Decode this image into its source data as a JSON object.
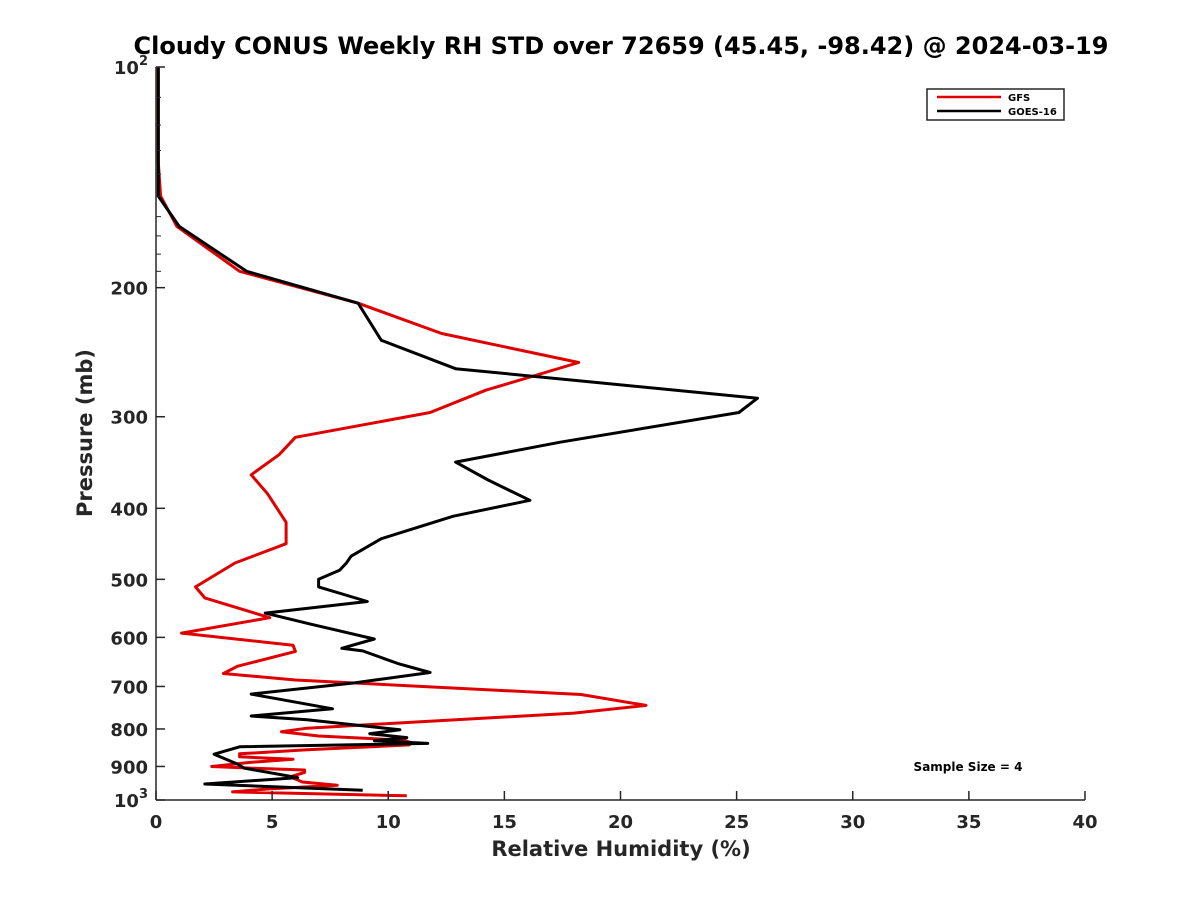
{
  "chart_data": {
    "type": "line",
    "title": "Cloudy CONUS Weekly RH STD over 72659 (45.45, -98.42) @ 2024-03-19",
    "xlabel": "Relative Humidity (%)",
    "ylabel": "Pressure (mb)",
    "xlim": [
      0,
      40
    ],
    "ylim": [
      100,
      1000
    ],
    "y_scale": "log",
    "y_reversed": true,
    "grid": false,
    "legend_position": "top-right",
    "x_ticks": [
      "0",
      "5",
      "10",
      "15",
      "20",
      "25",
      "30",
      "35",
      "40"
    ],
    "y_ticks": [
      {
        "value": 100,
        "base": "10",
        "exp": "2"
      },
      {
        "value": 200,
        "label": "200"
      },
      {
        "value": 300,
        "label": "300"
      },
      {
        "value": 400,
        "label": "400"
      },
      {
        "value": 500,
        "label": "500"
      },
      {
        "value": 600,
        "label": "600"
      },
      {
        "value": 700,
        "label": "700"
      },
      {
        "value": 800,
        "label": "800"
      },
      {
        "value": 900,
        "label": "900"
      },
      {
        "value": 1000,
        "base": "10",
        "exp": "3"
      }
    ],
    "annotation": "Sample Size = 4",
    "series": [
      {
        "name": "GFS",
        "color": "#e00000",
        "points": [
          [
            0.1,
            100
          ],
          [
            0.1,
            115
          ],
          [
            0.1,
            135
          ],
          [
            0.2,
            150
          ],
          [
            0.9,
            165
          ],
          [
            3.6,
            190
          ],
          [
            8.7,
            210
          ],
          [
            12.3,
            231
          ],
          [
            18.2,
            253
          ],
          [
            14.2,
            276
          ],
          [
            11.8,
            296
          ],
          [
            6.0,
            320
          ],
          [
            5.3,
            338
          ],
          [
            4.1,
            360
          ],
          [
            4.8,
            382
          ],
          [
            5.6,
            418
          ],
          [
            5.6,
            447
          ],
          [
            3.4,
            475
          ],
          [
            1.7,
            512
          ],
          [
            2.1,
            530
          ],
          [
            4.9,
            564
          ],
          [
            1.1,
            592
          ],
          [
            5.9,
            615
          ],
          [
            6.0,
            627
          ],
          [
            3.5,
            657
          ],
          [
            2.9,
            672
          ],
          [
            6.0,
            686
          ],
          [
            18.3,
            718
          ],
          [
            21.1,
            743
          ],
          [
            18.0,
            761
          ],
          [
            8.0,
            793
          ],
          [
            6.5,
            798
          ],
          [
            5.4,
            807
          ],
          [
            7.0,
            818
          ],
          [
            10.7,
            829
          ],
          [
            11.0,
            836
          ],
          [
            10.9,
            841
          ],
          [
            6.5,
            854
          ],
          [
            3.6,
            865
          ],
          [
            3.6,
            873
          ],
          [
            5.9,
            880
          ],
          [
            4.0,
            889
          ],
          [
            2.4,
            900
          ],
          [
            4.2,
            905
          ],
          [
            6.4,
            910
          ],
          [
            6.4,
            917
          ],
          [
            5.9,
            927
          ],
          [
            5.9,
            933
          ],
          [
            6.3,
            945
          ],
          [
            7.8,
            955
          ],
          [
            4.8,
            966
          ],
          [
            3.3,
            975
          ],
          [
            10.8,
            987
          ]
        ]
      },
      {
        "name": "GOES-16",
        "color": "#000000",
        "points": [
          [
            0.1,
            100
          ],
          [
            0.1,
            120
          ],
          [
            0.1,
            140
          ],
          [
            0.1,
            150
          ],
          [
            1.0,
            165
          ],
          [
            3.9,
            190
          ],
          [
            8.7,
            210
          ],
          [
            9.7,
            236
          ],
          [
            12.9,
            258
          ],
          [
            25.9,
            283
          ],
          [
            25.1,
            296
          ],
          [
            17.4,
            325
          ],
          [
            12.9,
            346
          ],
          [
            14.3,
            366
          ],
          [
            16.1,
            390
          ],
          [
            12.8,
            410
          ],
          [
            9.7,
            440
          ],
          [
            8.4,
            465
          ],
          [
            8.2,
            475
          ],
          [
            7.9,
            486
          ],
          [
            7.0,
            500
          ],
          [
            7.0,
            512
          ],
          [
            9.1,
            536
          ],
          [
            4.7,
            556
          ],
          [
            6.6,
            575
          ],
          [
            9.4,
            603
          ],
          [
            8.0,
            621
          ],
          [
            8.9,
            626
          ],
          [
            10.4,
            651
          ],
          [
            11.8,
            670
          ],
          [
            8.4,
            693
          ],
          [
            4.1,
            717
          ],
          [
            7.6,
            751
          ],
          [
            4.1,
            768
          ],
          [
            6.5,
            777
          ],
          [
            10.5,
            802
          ],
          [
            9.2,
            812
          ],
          [
            10.8,
            822
          ],
          [
            9.4,
            830
          ],
          [
            11.7,
            837
          ],
          [
            3.6,
            846
          ],
          [
            2.5,
            866
          ],
          [
            3.5,
            893
          ],
          [
            3.8,
            905
          ],
          [
            6.1,
            932
          ],
          [
            2.1,
            951
          ],
          [
            8.9,
            970
          ]
        ]
      }
    ]
  }
}
